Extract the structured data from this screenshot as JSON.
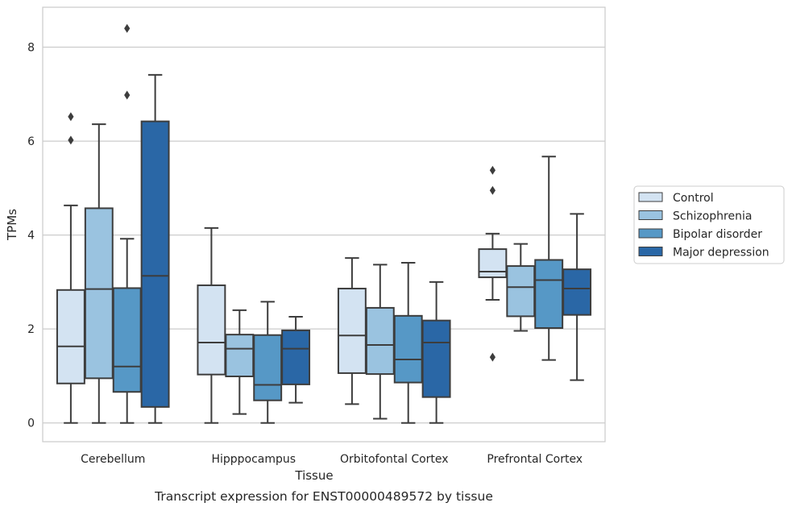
{
  "caption": "Transcript expression for ENST00000489572 by tissue",
  "chart_data": {
    "type": "boxplot",
    "xlabel": "Tissue",
    "ylabel": "TPMs",
    "ylim": [
      -0.4,
      8.85
    ],
    "yticks": [
      0,
      2,
      4,
      6,
      8
    ],
    "grid": "horizontal",
    "legend_position": "right",
    "categories": [
      "Cerebellum",
      "Hipppocampus",
      "Orbitofontal Cortex",
      "Prefrontal Cortex"
    ],
    "series": [
      {
        "name": "Control",
        "color": "#d3e3f2",
        "boxes": [
          {
            "whislo": 0.0,
            "q1": 0.84,
            "med": 1.63,
            "q3": 2.83,
            "whishi": 4.63,
            "fliers": [
              6.02,
              6.52
            ]
          },
          {
            "whislo": 0.0,
            "q1": 1.03,
            "med": 1.71,
            "q3": 2.93,
            "whishi": 4.15,
            "fliers": []
          },
          {
            "whislo": 0.4,
            "q1": 1.06,
            "med": 1.86,
            "q3": 2.86,
            "whishi": 3.51,
            "fliers": []
          },
          {
            "whislo": 2.62,
            "q1": 3.1,
            "med": 3.22,
            "q3": 3.7,
            "whishi": 4.03,
            "fliers": [
              1.4,
              4.95,
              5.38
            ]
          }
        ]
      },
      {
        "name": "Schizophrenia",
        "color": "#9ac3e0",
        "boxes": [
          {
            "whislo": 0.0,
            "q1": 0.95,
            "med": 2.85,
            "q3": 4.57,
            "whishi": 6.36,
            "fliers": []
          },
          {
            "whislo": 0.19,
            "q1": 0.99,
            "med": 1.58,
            "q3": 1.88,
            "whishi": 2.4,
            "fliers": []
          },
          {
            "whislo": 0.09,
            "q1": 1.04,
            "med": 1.66,
            "q3": 2.45,
            "whishi": 3.37,
            "fliers": []
          },
          {
            "whislo": 1.96,
            "q1": 2.27,
            "med": 2.89,
            "q3": 3.34,
            "whishi": 3.81,
            "fliers": []
          }
        ]
      },
      {
        "name": "Bipolar disorder",
        "color": "#5698c6",
        "boxes": [
          {
            "whislo": 0.0,
            "q1": 0.66,
            "med": 1.2,
            "q3": 2.87,
            "whishi": 3.92,
            "fliers": [
              6.98,
              8.4
            ]
          },
          {
            "whislo": 0.0,
            "q1": 0.48,
            "med": 0.81,
            "q3": 1.87,
            "whishi": 2.58,
            "fliers": []
          },
          {
            "whislo": 0.0,
            "q1": 0.86,
            "med": 1.35,
            "q3": 2.28,
            "whishi": 3.41,
            "fliers": []
          },
          {
            "whislo": 1.34,
            "q1": 2.02,
            "med": 3.04,
            "q3": 3.47,
            "whishi": 5.67,
            "fliers": []
          }
        ]
      },
      {
        "name": "Major depression",
        "color": "#2a67a6",
        "boxes": [
          {
            "whislo": 0.0,
            "q1": 0.34,
            "med": 3.13,
            "q3": 6.42,
            "whishi": 7.41,
            "fliers": []
          },
          {
            "whislo": 0.43,
            "q1": 0.82,
            "med": 1.58,
            "q3": 1.97,
            "whishi": 2.26,
            "fliers": []
          },
          {
            "whislo": 0.0,
            "q1": 0.55,
            "med": 1.71,
            "q3": 2.18,
            "whishi": 3.0,
            "fliers": []
          },
          {
            "whislo": 0.91,
            "q1": 2.3,
            "med": 2.86,
            "q3": 3.27,
            "whishi": 4.45,
            "fliers": []
          }
        ]
      }
    ]
  }
}
